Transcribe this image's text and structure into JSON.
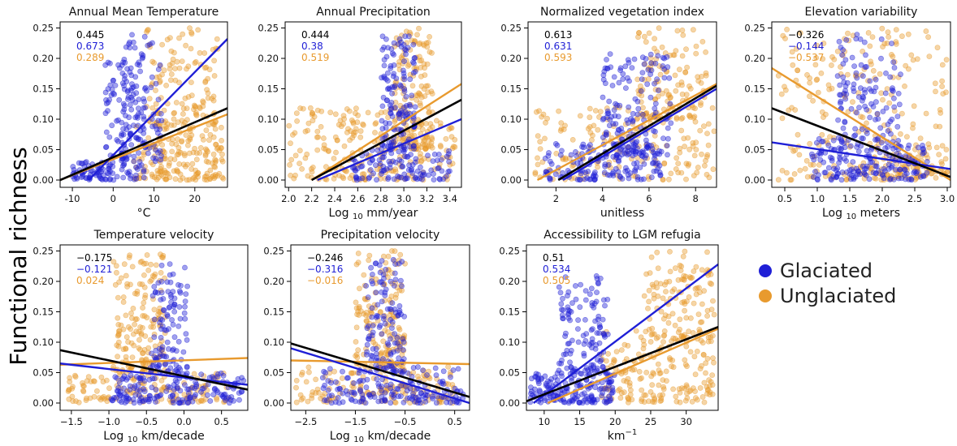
{
  "figure": {
    "ylabel": "Functional richness",
    "legend": {
      "position": "right",
      "items": [
        {
          "label": "Glaciated",
          "color": "#1f1fd6"
        },
        {
          "label": "Unglaciated",
          "color": "#e89a2e"
        }
      ]
    },
    "colors": {
      "overall": "#000000",
      "glaciated": "#1f1fd6",
      "unglaciated": "#e89a2e"
    }
  },
  "chart_data": [
    {
      "type": "scatter",
      "title": "Annual Mean Temperature",
      "xlabel": "°C",
      "xlim": [
        -13,
        28
      ],
      "ylim": [
        -0.012,
        0.26
      ],
      "xticks": [
        -10,
        0,
        10,
        20
      ],
      "yticks": [
        0.0,
        0.05,
        0.1,
        0.15,
        0.2,
        0.25
      ],
      "coefficients": {
        "overall": "0.445",
        "glaciated": "0.673",
        "unglaciated": "0.289"
      },
      "fit_lines": {
        "overall": [
          [
            -13,
            0.0
          ],
          [
            28,
            0.118
          ]
        ],
        "glaciated": [
          [
            -6,
            0.0
          ],
          [
            28,
            0.232
          ]
        ],
        "unglaciated": [
          [
            -13,
            0.0
          ],
          [
            28,
            0.108
          ]
        ]
      },
      "clusters": {
        "glaciated": [
          {
            "x": [
              -10,
              0
            ],
            "y": [
              0.0,
              0.03
            ],
            "n": 60
          },
          {
            "x": [
              -2,
              8
            ],
            "y": [
              0.0,
              0.2
            ],
            "n": 130
          },
          {
            "x": [
              2,
              12
            ],
            "y": [
              0.03,
              0.24
            ],
            "n": 90
          }
        ],
        "unglaciated": [
          {
            "x": [
              5,
              27
            ],
            "y": [
              0.0,
              0.09
            ],
            "n": 180
          },
          {
            "x": [
              8,
              26
            ],
            "y": [
              0.09,
              0.25
            ],
            "n": 130
          }
        ]
      }
    },
    {
      "type": "scatter",
      "title": "Annual Precipitation",
      "xlabel": "Log 10 mm/year",
      "xlim": [
        1.97,
        3.5
      ],
      "ylim": [
        -0.012,
        0.26
      ],
      "xticks": [
        2.0,
        2.2,
        2.4,
        2.6,
        2.8,
        3.0,
        3.2,
        3.4
      ],
      "xtick_labels": [
        "2.0",
        "2.2",
        "2.4",
        "2.6",
        "2.8",
        "3.0",
        "3.2",
        "3.4"
      ],
      "yticks": [
        0.0,
        0.05,
        0.1,
        0.15,
        0.2,
        0.25
      ],
      "coefficients": {
        "overall": "0.444",
        "glaciated": "0.38",
        "unglaciated": "0.519"
      },
      "fit_lines": {
        "overall": [
          [
            2.2,
            0.0
          ],
          [
            3.5,
            0.132
          ]
        ],
        "glaciated": [
          [
            2.25,
            0.0
          ],
          [
            3.5,
            0.1
          ]
        ],
        "unglaciated": [
          [
            2.2,
            0.0
          ],
          [
            3.5,
            0.158
          ]
        ]
      },
      "clusters": {
        "glaciated": [
          {
            "x": [
              2.55,
              3.4
            ],
            "y": [
              0.0,
              0.05
            ],
            "n": 110
          },
          {
            "x": [
              2.8,
              3.1
            ],
            "y": [
              0.05,
              0.24
            ],
            "n": 140
          }
        ],
        "unglaciated": [
          {
            "x": [
              2.0,
              3.0
            ],
            "y": [
              0.0,
              0.12
            ],
            "n": 170
          },
          {
            "x": [
              2.9,
              3.25
            ],
            "y": [
              0.05,
              0.25
            ],
            "n": 160
          },
          {
            "x": [
              3.0,
              3.45
            ],
            "y": [
              0.0,
              0.1
            ],
            "n": 60
          }
        ]
      }
    },
    {
      "type": "scatter",
      "title": "Normalized vegetation index",
      "xlabel": "unitless",
      "xlim": [
        0.8,
        8.9
      ],
      "ylim": [
        -0.012,
        0.26
      ],
      "xticks": [
        2,
        4,
        6,
        8
      ],
      "yticks": [
        0.0,
        0.05,
        0.1,
        0.15,
        0.2,
        0.25
      ],
      "coefficients": {
        "overall": "0.613",
        "glaciated": "0.631",
        "unglaciated": "0.593"
      },
      "fit_lines": {
        "overall": [
          [
            2.1,
            0.0
          ],
          [
            8.9,
            0.155
          ]
        ],
        "glaciated": [
          [
            2.3,
            0.0
          ],
          [
            8.9,
            0.15
          ]
        ],
        "unglaciated": [
          [
            1.2,
            0.0
          ],
          [
            8.9,
            0.158
          ]
        ]
      },
      "clusters": {
        "glaciated": [
          {
            "x": [
              1.5,
              6.5
            ],
            "y": [
              0.0,
              0.06
            ],
            "n": 150
          },
          {
            "x": [
              4,
              7
            ],
            "y": [
              0.04,
              0.21
            ],
            "n": 150
          }
        ],
        "unglaciated": [
          {
            "x": [
              1.0,
              8.8
            ],
            "y": [
              0.0,
              0.12
            ],
            "n": 180
          },
          {
            "x": [
              5.5,
              8.5
            ],
            "y": [
              0.1,
              0.25
            ],
            "n": 120
          }
        ]
      }
    },
    {
      "type": "scatter",
      "title": "Elevation variability",
      "xlabel": "Log 10 meters",
      "xlim": [
        0.3,
        3.05
      ],
      "ylim": [
        -0.012,
        0.26
      ],
      "xticks": [
        0.5,
        1.0,
        1.5,
        2.0,
        2.5,
        3.0
      ],
      "xtick_labels": [
        "0.5",
        "1.0",
        "1.5",
        "2.0",
        "2.5",
        "3.0"
      ],
      "yticks": [
        0.0,
        0.05,
        0.1,
        0.15,
        0.2,
        0.25
      ],
      "coefficients": {
        "overall": "−0.326",
        "glaciated": "−0.144",
        "unglaciated": "−0.537"
      },
      "fit_lines": {
        "overall": [
          [
            0.3,
            0.118
          ],
          [
            3.05,
            0.005
          ]
        ],
        "glaciated": [
          [
            0.3,
            0.062
          ],
          [
            3.05,
            0.018
          ]
        ],
        "unglaciated": [
          [
            0.3,
            0.184
          ],
          [
            3.05,
            0.0
          ]
        ]
      },
      "clusters": {
        "glaciated": [
          {
            "x": [
              0.9,
              2.7
            ],
            "y": [
              0.0,
              0.07
            ],
            "n": 170
          },
          {
            "x": [
              1.3,
              2.3
            ],
            "y": [
              0.05,
              0.24
            ],
            "n": 120
          }
        ],
        "unglaciated": [
          {
            "x": [
              0.4,
              3.0
            ],
            "y": [
              0.0,
              0.25
            ],
            "n": 220
          },
          {
            "x": [
              1.8,
              3.0
            ],
            "y": [
              0.0,
              0.06
            ],
            "n": 80
          }
        ]
      }
    },
    {
      "type": "scatter",
      "title": "Temperature velocity",
      "xlabel": "Log 10 km/decade",
      "xlim": [
        -1.65,
        0.85
      ],
      "ylim": [
        -0.012,
        0.26
      ],
      "xticks": [
        -1.5,
        -1.0,
        -0.5,
        0.0,
        0.5
      ],
      "xtick_labels": [
        "−1.5",
        "−1.0",
        "−0.5",
        "0.0",
        "0.5"
      ],
      "yticks": [
        0.0,
        0.05,
        0.1,
        0.15,
        0.2,
        0.25
      ],
      "coefficients": {
        "overall": "−0.175",
        "glaciated": "−0.121",
        "unglaciated": "0.024"
      },
      "fit_lines": {
        "overall": [
          [
            -1.65,
            0.087
          ],
          [
            0.85,
            0.022
          ]
        ],
        "glaciated": [
          [
            -1.65,
            0.065
          ],
          [
            0.85,
            0.03
          ]
        ],
        "unglaciated": [
          [
            -1.65,
            0.063
          ],
          [
            0.85,
            0.074
          ]
        ]
      },
      "clusters": {
        "glaciated": [
          {
            "x": [
              -1.0,
              0.8
            ],
            "y": [
              0.0,
              0.05
            ],
            "n": 170
          },
          {
            "x": [
              -0.45,
              0.05
            ],
            "y": [
              0.05,
              0.23
            ],
            "n": 110
          }
        ],
        "unglaciated": [
          {
            "x": [
              -1.6,
              0.6
            ],
            "y": [
              0.0,
              0.05
            ],
            "n": 130
          },
          {
            "x": [
              -0.95,
              -0.25
            ],
            "y": [
              0.05,
              0.25
            ],
            "n": 170
          }
        ]
      }
    },
    {
      "type": "scatter",
      "title": "Precipitation velocity",
      "xlabel": "Log 10 km/decade",
      "xlim": [
        -2.8,
        0.8
      ],
      "ylim": [
        -0.012,
        0.26
      ],
      "xticks": [
        -2.5,
        -1.5,
        -0.5,
        0.5
      ],
      "xtick_labels": [
        "−2.5",
        "−1.5",
        "−0.5",
        "0.5"
      ],
      "yticks": [
        0.0,
        0.05,
        0.1,
        0.15,
        0.2,
        0.25
      ],
      "coefficients": {
        "overall": "−0.246",
        "glaciated": "−0.316",
        "unglaciated": "−0.016"
      },
      "fit_lines": {
        "overall": [
          [
            -2.8,
            0.098
          ],
          [
            0.8,
            0.01
          ]
        ],
        "glaciated": [
          [
            -2.8,
            0.09
          ],
          [
            0.8,
            0.0
          ]
        ],
        "unglaciated": [
          [
            -2.8,
            0.07
          ],
          [
            0.8,
            0.064
          ]
        ]
      },
      "clusters": {
        "glaciated": [
          {
            "x": [
              -2.2,
              0.7
            ],
            "y": [
              0.0,
              0.06
            ],
            "n": 160
          },
          {
            "x": [
              -1.3,
              -0.5
            ],
            "y": [
              0.05,
              0.24
            ],
            "n": 120
          }
        ],
        "unglaciated": [
          {
            "x": [
              -2.7,
              0.5
            ],
            "y": [
              0.0,
              0.06
            ],
            "n": 150
          },
          {
            "x": [
              -1.5,
              -0.5
            ],
            "y": [
              0.06,
              0.25
            ],
            "n": 160
          }
        ]
      }
    },
    {
      "type": "scatter",
      "title": "Accessibility to LGM refugia",
      "xlabel": "km −1",
      "xlim": [
        7.5,
        34.5
      ],
      "ylim": [
        -0.012,
        0.26
      ],
      "xticks": [
        10,
        15,
        20,
        25,
        30
      ],
      "yticks": [
        0.0,
        0.05,
        0.1,
        0.15,
        0.2,
        0.25
      ],
      "coefficients": {
        "overall": "0.51",
        "glaciated": "0.534",
        "unglaciated": "0.505"
      },
      "fit_lines": {
        "overall": [
          [
            7.5,
            0.003
          ],
          [
            34.5,
            0.125
          ]
        ],
        "glaciated": [
          [
            8.5,
            0.0
          ],
          [
            34.5,
            0.228
          ]
        ],
        "unglaciated": [
          [
            10.5,
            0.0
          ],
          [
            34.5,
            0.122
          ]
        ]
      },
      "clusters": {
        "glaciated": [
          {
            "x": [
              8,
              20
            ],
            "y": [
              0.0,
              0.05
            ],
            "n": 170
          },
          {
            "x": [
              12,
              19
            ],
            "y": [
              0.05,
              0.21
            ],
            "n": 120
          }
        ],
        "unglaciated": [
          {
            "x": [
              18,
              34
            ],
            "y": [
              0.0,
              0.12
            ],
            "n": 180
          },
          {
            "x": [
              24,
              34
            ],
            "y": [
              0.1,
              0.25
            ],
            "n": 120
          }
        ]
      }
    }
  ]
}
